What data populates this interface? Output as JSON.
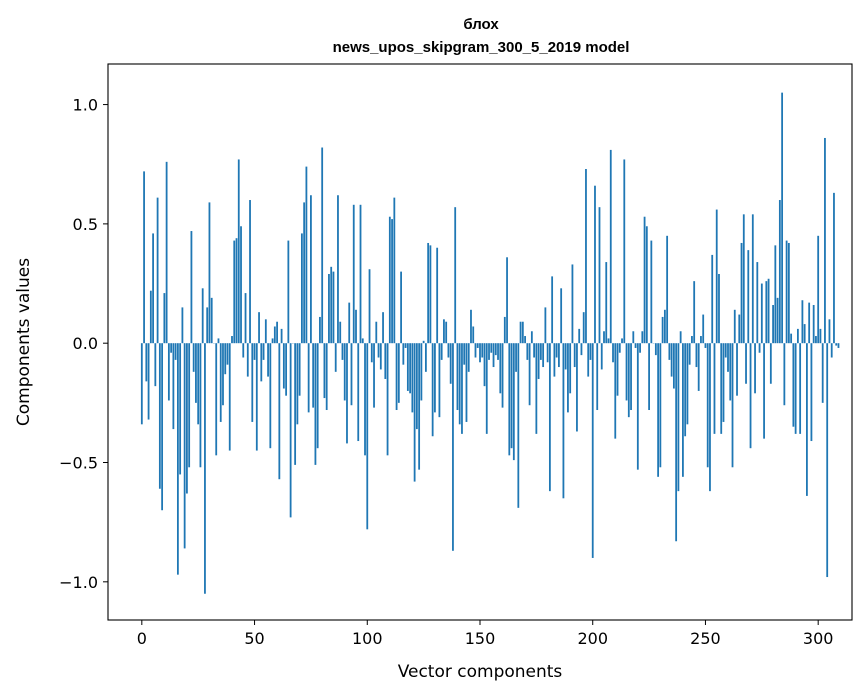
{
  "chart_data": {
    "type": "bar",
    "title": "блох",
    "subtitle": "news_upos_skipgram_300_5_2019 model",
    "xlabel": "Vector components",
    "ylabel": "Components values",
    "xlim": [
      -15,
      315
    ],
    "ylim": [
      -1.16,
      1.17
    ],
    "xticks": [
      0,
      50,
      100,
      150,
      200,
      250,
      300
    ],
    "yticks": [
      -1.0,
      -0.5,
      0.0,
      0.5,
      1.0
    ],
    "xtick_labels": [
      "0",
      "50",
      "100",
      "150",
      "200",
      "250",
      "300"
    ],
    "ytick_labels": [
      "−1.0",
      "−0.5",
      "0.0",
      "0.5",
      "1.0"
    ],
    "grid": false,
    "bar_color": "#1f77b4",
    "values": [
      -0.34,
      0.72,
      -0.16,
      -0.32,
      0.22,
      0.46,
      -0.18,
      0.61,
      -0.61,
      -0.7,
      0.21,
      0.76,
      -0.24,
      -0.04,
      -0.36,
      -0.07,
      -0.97,
      -0.55,
      0.15,
      -0.86,
      -0.63,
      -0.52,
      0.47,
      -0.12,
      -0.25,
      -0.34,
      -0.52,
      0.23,
      -1.05,
      0.15,
      0.59,
      0.19,
      0.0,
      -0.47,
      0.02,
      -0.33,
      -0.26,
      -0.13,
      -0.09,
      -0.45,
      0.03,
      0.43,
      0.44,
      0.77,
      0.49,
      -0.06,
      0.21,
      -0.14,
      0.6,
      -0.33,
      -0.07,
      -0.45,
      0.13,
      -0.16,
      -0.07,
      0.1,
      -0.14,
      -0.44,
      0.02,
      0.07,
      0.09,
      -0.57,
      0.06,
      -0.19,
      -0.22,
      0.43,
      -0.73,
      0.0,
      -0.51,
      -0.34,
      -0.22,
      0.46,
      0.59,
      0.74,
      -0.29,
      0.62,
      -0.27,
      -0.51,
      -0.44,
      0.11,
      0.82,
      -0.23,
      -0.28,
      0.29,
      0.32,
      0.3,
      -0.12,
      0.62,
      0.09,
      -0.07,
      -0.24,
      -0.42,
      0.17,
      -0.26,
      0.58,
      0.14,
      -0.41,
      0.58,
      0.02,
      -0.47,
      -0.78,
      0.31,
      -0.08,
      -0.27,
      0.09,
      -0.06,
      -0.11,
      0.13,
      -0.15,
      -0.47,
      0.53,
      0.52,
      0.61,
      -0.28,
      -0.25,
      0.3,
      -0.09,
      -0.02,
      -0.2,
      -0.21,
      -0.29,
      -0.58,
      -0.36,
      -0.53,
      -0.24,
      0.01,
      -0.12,
      0.42,
      0.41,
      -0.39,
      -0.29,
      0.4,
      -0.31,
      -0.07,
      0.1,
      0.09,
      -0.06,
      -0.17,
      -0.87,
      0.57,
      -0.28,
      -0.34,
      -0.38,
      -0.09,
      -0.33,
      -0.12,
      0.14,
      0.07,
      -0.06,
      -0.02,
      -0.08,
      -0.06,
      -0.18,
      -0.38,
      -0.07,
      -0.04,
      -0.1,
      -0.05,
      -0.07,
      -0.21,
      -0.27,
      0.11,
      0.36,
      -0.47,
      -0.44,
      -0.49,
      -0.12,
      -0.69,
      0.09,
      0.09,
      0.03,
      -0.07,
      -0.26,
      0.05,
      -0.06,
      -0.38,
      -0.15,
      -0.07,
      -0.1,
      0.15,
      -0.08,
      -0.62,
      0.28,
      -0.14,
      -0.06,
      -0.1,
      0.23,
      -0.65,
      -0.11,
      -0.29,
      -0.21,
      0.33,
      -0.1,
      -0.37,
      0.06,
      -0.05,
      0.13,
      0.73,
      -0.14,
      -0.07,
      -0.9,
      0.66,
      -0.28,
      0.57,
      -0.11,
      0.05,
      0.34,
      0.02,
      0.81,
      -0.08,
      -0.4,
      -0.22,
      -0.04,
      0.02,
      0.77,
      -0.24,
      -0.31,
      -0.28,
      0.05,
      -0.02,
      -0.53,
      -0.04,
      0.05,
      0.53,
      0.49,
      -0.28,
      0.43,
      0.0,
      -0.05,
      -0.56,
      -0.52,
      0.11,
      0.14,
      0.45,
      -0.07,
      -0.14,
      -0.19,
      -0.83,
      -0.62,
      0.05,
      -0.56,
      -0.39,
      -0.34,
      -0.09,
      0.03,
      0.26,
      -0.1,
      -0.2,
      0.03,
      0.12,
      -0.02,
      -0.52,
      -0.62,
      0.37,
      -0.38,
      0.56,
      0.29,
      -0.38,
      -0.33,
      -0.06,
      -0.12,
      -0.24,
      -0.52,
      0.14,
      -0.22,
      0.12,
      0.42,
      0.54,
      -0.17,
      0.39,
      -0.44,
      0.54,
      -0.21,
      0.34,
      -0.04,
      0.25,
      -0.4,
      0.26,
      0.27,
      -0.17,
      0.16,
      0.41,
      0.19,
      0.6,
      1.05,
      -0.26,
      0.43,
      0.42,
      0.04,
      -0.35,
      -0.38,
      0.06,
      -0.38,
      0.18,
      0.08,
      -0.64,
      0.17,
      -0.41,
      0.16,
      0.03,
      0.45,
      0.06,
      -0.25,
      0.86,
      -0.98,
      0.1,
      -0.06,
      0.63,
      -0.01,
      -0.02
    ]
  }
}
